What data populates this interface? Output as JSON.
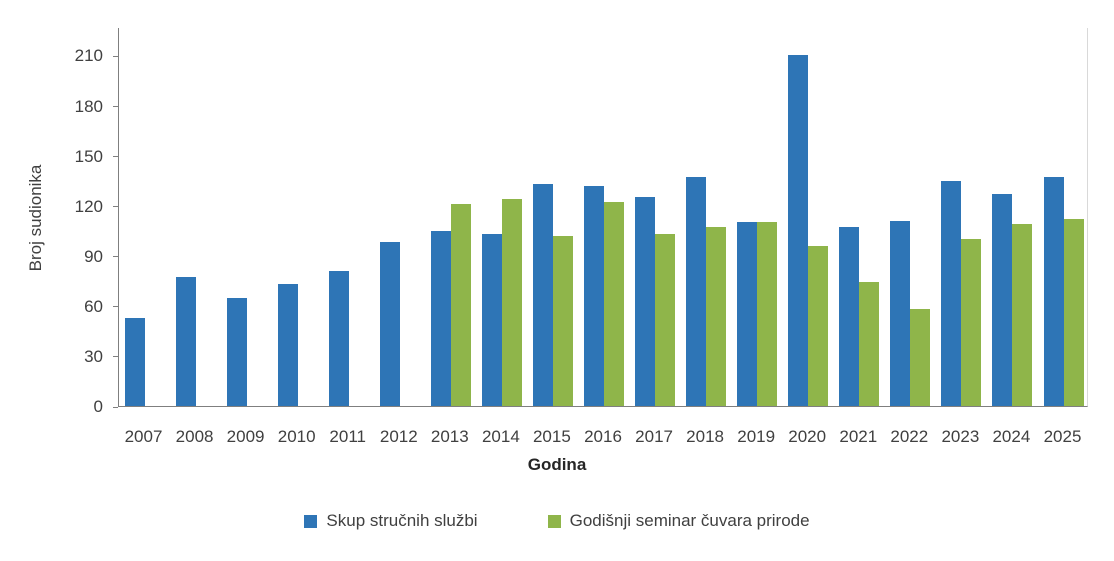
{
  "chart_data": {
    "type": "bar",
    "title": "",
    "xlabel": "Godina",
    "ylabel": "Broj sudionika",
    "ylim": [
      0,
      227
    ],
    "yticks": [
      0,
      30,
      60,
      90,
      120,
      150,
      180,
      210
    ],
    "grid": false,
    "legend_position": "bottom",
    "categories": [
      "2007",
      "2008",
      "2009",
      "2010",
      "2011",
      "2012",
      "2013",
      "2014",
      "2015",
      "2016",
      "2017",
      "2018",
      "2019",
      "2020",
      "2021",
      "2022",
      "2023",
      "2024",
      "2025"
    ],
    "series": [
      {
        "name": "Skup stručnih službi",
        "color": "#2E75B6",
        "values": [
          53,
          77,
          65,
          73,
          81,
          98,
          105,
          103,
          133,
          132,
          125,
          137,
          110,
          210,
          107,
          111,
          135,
          127,
          137
        ]
      },
      {
        "name": "Godišnji seminar čuvara prirode",
        "color": "#8FB54A",
        "values": [
          null,
          null,
          null,
          null,
          null,
          null,
          121,
          124,
          102,
          122,
          103,
          107,
          110,
          96,
          74,
          58,
          100,
          109,
          112
        ]
      }
    ]
  }
}
